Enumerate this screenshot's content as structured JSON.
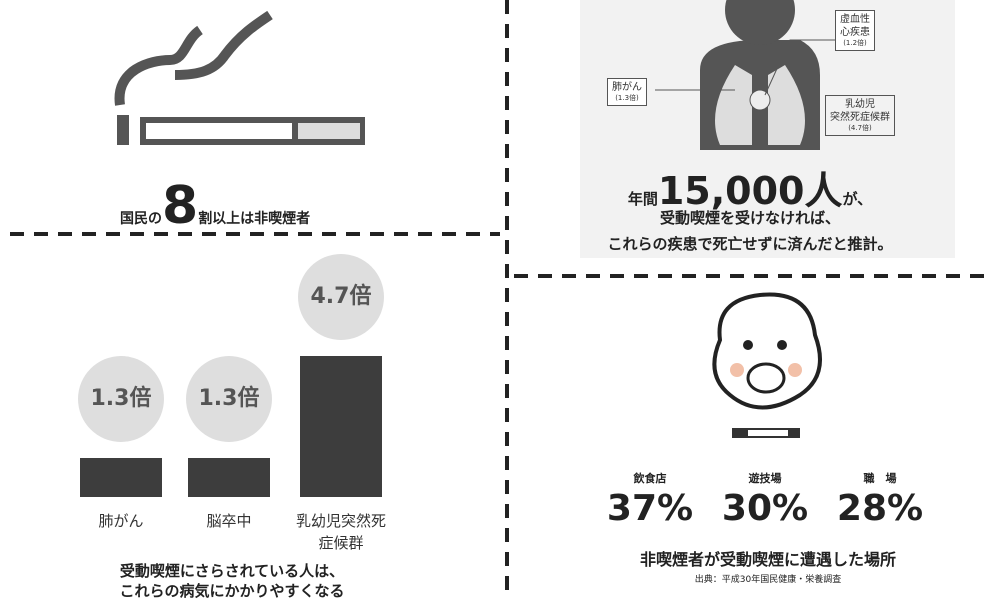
{
  "top_left": {
    "prefix": "国民の",
    "number": "8",
    "suffix": "割以上は非喫煙者"
  },
  "top_right": {
    "diseases": [
      {
        "lines": [
          "虚血性",
          "心疾患"
        ],
        "ratio": "(1.2倍)"
      },
      {
        "lines": [
          "肺がん"
        ],
        "ratio": "(1.3倍)"
      },
      {
        "lines": [
          "乳幼児",
          "突然死症候群"
        ],
        "ratio": "(4.7倍)"
      }
    ],
    "headline": {
      "prefix": "年間",
      "number": "15,000人",
      "suffix": "が、"
    },
    "lines": [
      "受動喫煙を受けなければ、",
      "これらの疾患で死亡せずに済んだと推計。"
    ]
  },
  "chart_data": {
    "type": "bar",
    "categories": [
      "肺がん",
      "脳卒中",
      "乳幼児突然死症候群"
    ],
    "values": [
      1.3,
      1.3,
      4.7
    ],
    "value_labels": [
      "1.3倍",
      "1.3倍",
      "4.7倍"
    ],
    "color": "#3d3d3d",
    "caption": [
      "受動喫煙にさらされている人は、",
      "これらの病気にかかりやすくなる"
    ]
  },
  "places": {
    "names": [
      "飲食店",
      "遊技場",
      "職　場"
    ],
    "rates": [
      "37%",
      "30%",
      "28%"
    ],
    "caption": "非喫煙者が受動喫煙に遭遇した場所",
    "source": "出典：平成30年国民健康・栄養調査"
  }
}
